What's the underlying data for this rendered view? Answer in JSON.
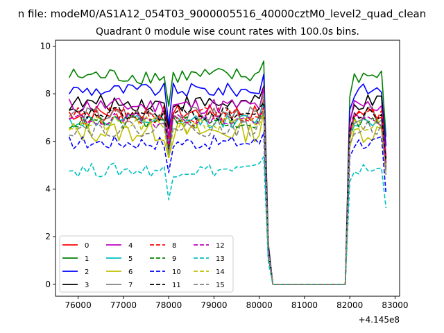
{
  "figure": {
    "suptitle": "n file: modeM0/AS1A12_054T03_9000005516_40000cztM0_level2_quad_clean",
    "title": "Quadrant 0 module wise count rates with 100.0s bins."
  },
  "chart_data": {
    "type": "line",
    "title": "Quadrant 0 module wise count rates with 100.0s bins.",
    "xlabel": "",
    "ylabel": "",
    "x_offset_label": "+4.145e8",
    "xlim": [
      75500,
      83100
    ],
    "ylim": [
      -0.5,
      10.25
    ],
    "xticks": [
      76000,
      77000,
      78000,
      79000,
      80000,
      81000,
      82000,
      83000
    ],
    "yticks": [
      0,
      2,
      4,
      6,
      8,
      10
    ],
    "xtick_labels": [
      "76000",
      "77000",
      "78000",
      "79000",
      "80000",
      "81000",
      "82000",
      "83000"
    ],
    "ytick_labels": [
      "0",
      "2",
      "4",
      "6",
      "8",
      "10"
    ],
    "grid": false,
    "legend_position": "lower-left",
    "legend_columns": 4,
    "series": [
      {
        "name": "0",
        "color": "#ff0000",
        "dash": "solid",
        "base": 7.2,
        "amp": 0.35,
        "end": 5.3
      },
      {
        "name": "1",
        "color": "#008000",
        "dash": "solid",
        "base": 8.75,
        "amp": 0.35,
        "end": 6.2
      },
      {
        "name": "2",
        "color": "#0000ff",
        "dash": "solid",
        "base": 8.15,
        "amp": 0.3,
        "end": 5.8
      },
      {
        "name": "3",
        "color": "#000000",
        "dash": "solid",
        "base": 7.6,
        "amp": 0.35,
        "end": 5.3
      },
      {
        "name": "4",
        "color": "#bf00bf",
        "dash": "solid",
        "base": 7.5,
        "amp": 0.35,
        "end": 5.4
      },
      {
        "name": "5",
        "color": "#00bfbf",
        "dash": "solid",
        "base": 6.85,
        "amp": 0.3,
        "end": 4.9
      },
      {
        "name": "6",
        "color": "#bfbf00",
        "dash": "solid",
        "base": 6.4,
        "amp": 0.45,
        "end": 4.6
      },
      {
        "name": "7",
        "color": "#808080",
        "dash": "solid",
        "base": 7.1,
        "amp": 0.35,
        "end": 5.0
      },
      {
        "name": "8",
        "color": "#ff0000",
        "dash": "dashed",
        "base": 7.1,
        "amp": 0.35,
        "end": 5.1
      },
      {
        "name": "9",
        "color": "#008000",
        "dash": "dashed",
        "base": 6.8,
        "amp": 0.3,
        "end": 4.8
      },
      {
        "name": "10",
        "color": "#0000ff",
        "dash": "dashed",
        "base": 5.95,
        "amp": 0.3,
        "end": 3.8
      },
      {
        "name": "11",
        "color": "#000000",
        "dash": "dashed",
        "base": 7.15,
        "amp": 0.3,
        "end": 5.1
      },
      {
        "name": "12",
        "color": "#bf00bf",
        "dash": "dashed",
        "base": 6.9,
        "amp": 0.3,
        "end": 4.9
      },
      {
        "name": "13",
        "color": "#00bfbf",
        "dash": "dashed",
        "base": 4.8,
        "amp": 0.3,
        "end": 3.2
      },
      {
        "name": "14",
        "color": "#bfbf00",
        "dash": "dashed",
        "base": 6.7,
        "amp": 0.35,
        "end": 4.7
      },
      {
        "name": "15",
        "color": "#808080",
        "dash": "dashed",
        "base": 6.55,
        "amp": 0.35,
        "end": 4.6
      }
    ],
    "segments": {
      "active1": [
        75800,
        80100
      ],
      "drop1": [
        80200,
        80300
      ],
      "zero": [
        80300,
        81900
      ],
      "rise": [
        81900,
        82000
      ],
      "active2": [
        82000,
        82700
      ],
      "end_x": 82800
    }
  }
}
